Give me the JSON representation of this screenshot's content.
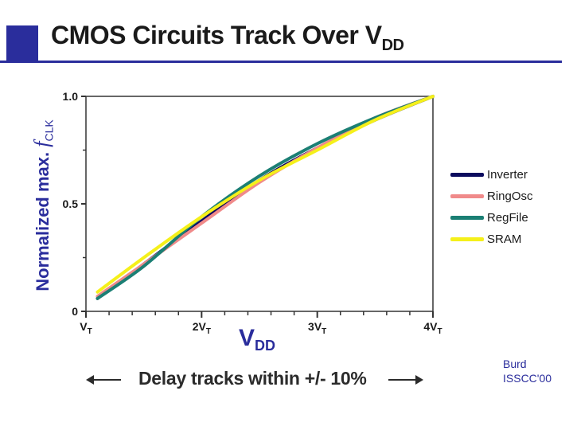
{
  "slide": {
    "title_main": "CMOS Circuits Track Over V",
    "title_sub": "DD",
    "delay_note": "Delay tracks within +/- 10%",
    "source_line1": "Burd",
    "source_line2": "ISSCC'00",
    "accent_color": "#2a2d9c"
  },
  "chart_data": {
    "type": "line",
    "xlabel_main": "V",
    "xlabel_sub": "DD",
    "ylabel_main": "Normalized max. ",
    "ylabel_f": "f",
    "ylabel_sub": "CLK",
    "xlim": [
      1,
      4
    ],
    "ylim": [
      0,
      1
    ],
    "x_ticks": [
      {
        "value": 1,
        "main": "V",
        "sub": "T"
      },
      {
        "value": 2,
        "main": "2V",
        "sub": "T"
      },
      {
        "value": 3,
        "main": "3V",
        "sub": "T"
      },
      {
        "value": 4,
        "main": "4V",
        "sub": "T"
      }
    ],
    "y_ticks": [
      {
        "value": 0,
        "label": "0"
      },
      {
        "value": 0.5,
        "label": "0.5"
      },
      {
        "value": 1,
        "label": "1.0"
      }
    ],
    "grid": false,
    "legend_position": "right",
    "x": [
      1.1,
      1.5,
      2.0,
      2.5,
      3.0,
      3.5,
      4.0
    ],
    "series": [
      {
        "name": "Inverter",
        "color": "#0b0b5e",
        "values": [
          0.06,
          0.22,
          0.42,
          0.61,
          0.76,
          0.89,
          1.0
        ]
      },
      {
        "name": "RingOsc",
        "color": "#f08a8a",
        "values": [
          0.07,
          0.22,
          0.41,
          0.6,
          0.76,
          0.9,
          1.0
        ]
      },
      {
        "name": "RegFile",
        "color": "#1b7f74",
        "values": [
          0.06,
          0.21,
          0.44,
          0.63,
          0.78,
          0.9,
          1.0
        ]
      },
      {
        "name": "SRAM",
        "color": "#f5f01a",
        "values": [
          0.09,
          0.25,
          0.44,
          0.61,
          0.75,
          0.89,
          1.0
        ]
      }
    ]
  }
}
